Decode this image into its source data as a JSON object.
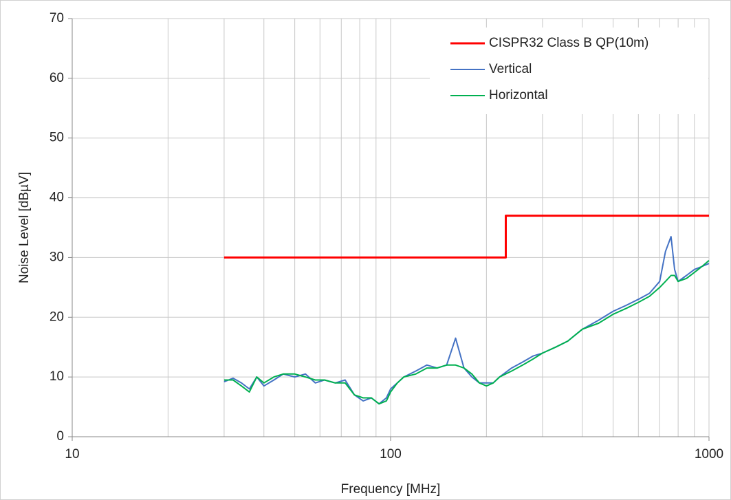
{
  "chart_data": {
    "type": "line",
    "xlabel": "Frequency [MHz]",
    "ylabel": "Noise Level [dBµV]",
    "xscale": "log",
    "xlim": [
      10,
      1000
    ],
    "xticks": [
      10,
      100,
      1000
    ],
    "ylim": [
      0,
      70
    ],
    "yticks": [
      0,
      10,
      20,
      30,
      40,
      50,
      60,
      70
    ],
    "grid": true,
    "legend": "upper right",
    "series": [
      {
        "name": "CISPR32 Class B QP(10m)",
        "color": "#ff0000",
        "x": [
          30,
          230,
          230,
          1000
        ],
        "values": [
          30,
          30,
          37,
          37
        ]
      },
      {
        "name": "Vertical",
        "color": "#4472c4",
        "x": [
          30,
          32,
          34,
          36,
          38,
          40,
          43,
          46,
          50,
          54,
          58,
          62,
          67,
          72,
          77,
          82,
          87,
          92,
          97,
          100,
          105,
          110,
          120,
          130,
          140,
          150,
          160,
          170,
          180,
          190,
          200,
          210,
          220,
          240,
          260,
          280,
          300,
          330,
          360,
          400,
          450,
          500,
          550,
          600,
          650,
          700,
          730,
          760,
          780,
          800,
          850,
          900,
          950,
          1000
        ],
        "values": [
          9.2,
          9.8,
          9,
          8,
          10,
          8.5,
          9.5,
          10.5,
          10,
          10.5,
          9,
          9.5,
          9,
          9.5,
          7,
          6,
          6.5,
          5.5,
          6.5,
          8,
          9,
          10,
          11,
          12,
          11.5,
          12,
          16.5,
          11.5,
          10,
          9,
          9,
          9,
          10,
          11.5,
          12.5,
          13.5,
          14,
          15,
          16,
          18,
          19.5,
          21,
          22,
          23,
          24,
          26,
          31,
          33.5,
          28,
          26,
          27,
          28,
          28.5,
          29
        ]
      },
      {
        "name": "Horizontal",
        "color": "#00b050",
        "x": [
          30,
          32,
          34,
          36,
          38,
          40,
          43,
          46,
          50,
          54,
          58,
          62,
          67,
          72,
          77,
          82,
          87,
          92,
          97,
          100,
          105,
          110,
          120,
          130,
          140,
          150,
          160,
          170,
          180,
          190,
          200,
          210,
          220,
          240,
          260,
          280,
          300,
          330,
          360,
          400,
          450,
          500,
          550,
          600,
          650,
          700,
          730,
          760,
          780,
          800,
          850,
          900,
          950,
          1000
        ],
        "values": [
          9.5,
          9.5,
          8.5,
          7.5,
          10,
          9,
          10,
          10.5,
          10.5,
          10,
          9.5,
          9.5,
          9,
          9,
          7,
          6.5,
          6.5,
          5.5,
          6,
          7.5,
          9,
          10,
          10.5,
          11.5,
          11.5,
          12,
          12,
          11.5,
          10.5,
          9,
          8.5,
          9,
          10,
          11,
          12,
          13,
          14,
          15,
          16,
          18,
          19,
          20.5,
          21.5,
          22.5,
          23.5,
          25,
          26,
          27,
          27,
          26,
          26.5,
          27.5,
          28.5,
          29.5
        ]
      }
    ]
  }
}
